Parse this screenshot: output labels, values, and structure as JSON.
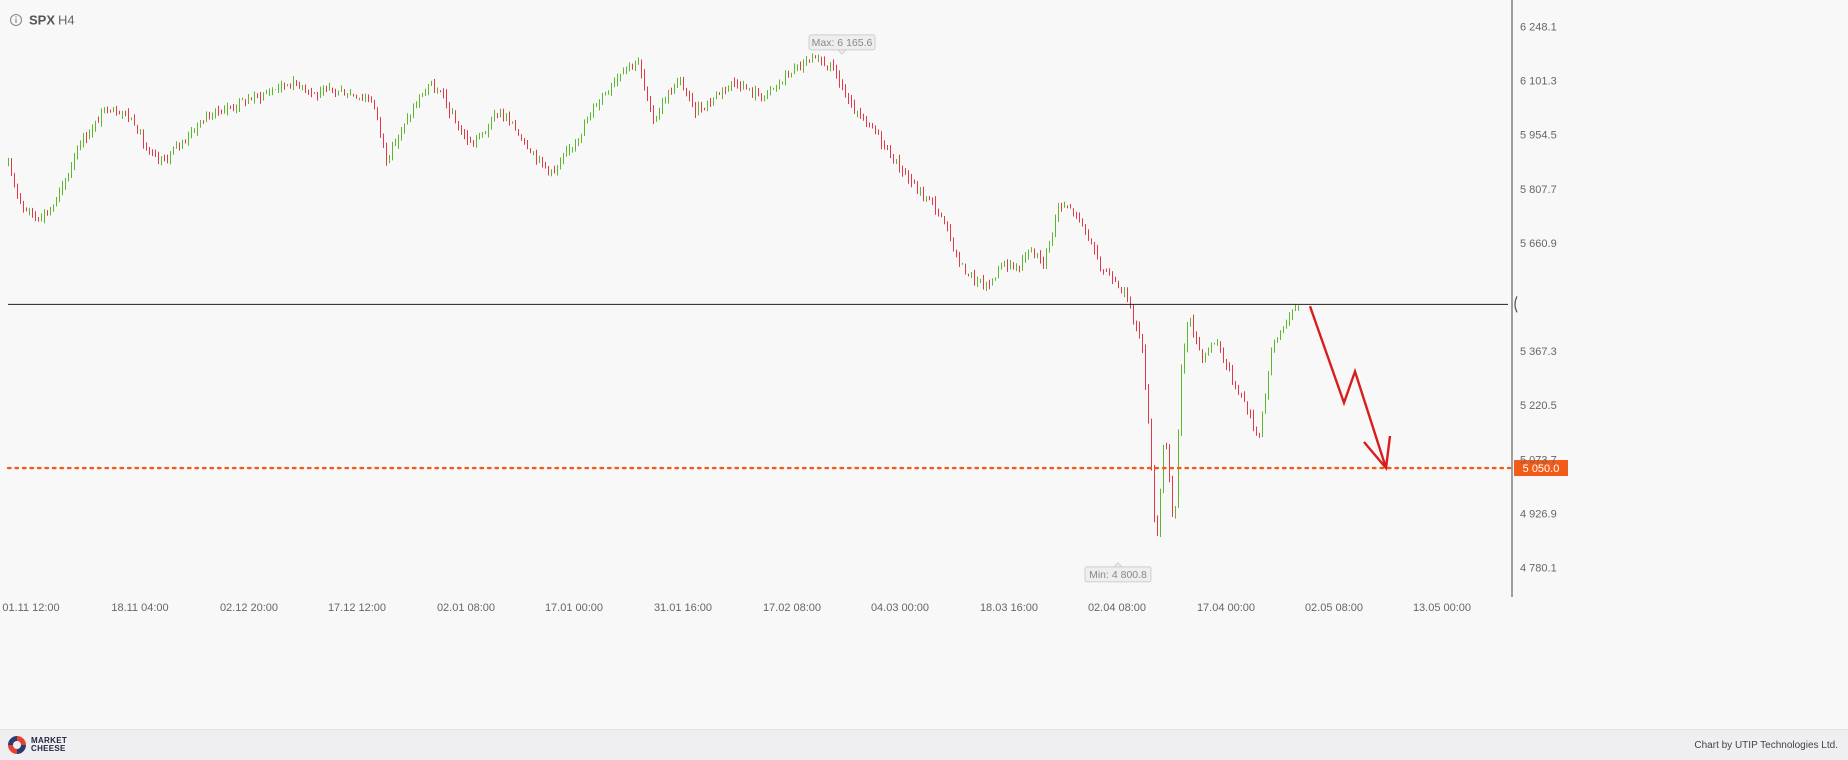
{
  "symbol": "SPX",
  "timeframe": "H4",
  "info_icon": "info-circle-icon",
  "footer": {
    "logo_line1": "MARKET",
    "logo_line2": "CHEESE",
    "credit": "Chart by UTIP Technologies Ltd."
  },
  "colors": {
    "up": "#5cb82e",
    "down": "#e0394a",
    "target": "#f25c19",
    "arrow": "#d71d1d",
    "level": "#222222",
    "background": "#f8f8f8"
  },
  "chart_data": {
    "type": "candlestick",
    "y_axis_side": "right",
    "ylim": [
      4700,
      6320
    ],
    "y_ticks": [
      "6 248.1",
      "6 101.3",
      "5 954.5",
      "5 807.7",
      "5 660.9",
      "5 367.3",
      "5 220.5",
      "5 073.7",
      "4 926.9",
      "4 780.1"
    ],
    "x_ticks": [
      "01.11 12:00",
      "18.11 04:00",
      "02.12 20:00",
      "17.12 12:00",
      "02.01 08:00",
      "17.01 00:00",
      "31.01 16:00",
      "17.02 08:00",
      "04.03 00:00",
      "18.03 16:00",
      "02.04 08:00",
      "17.04 00:00",
      "02.05 08:00",
      "13.05 00:00"
    ],
    "max_label": "Max: 6 165.6",
    "min_label": "Min: 4 800.8",
    "max_value": 6165.6,
    "min_value": 4800.8,
    "horizontal_level": 5494,
    "target_level": 5050.0,
    "target_label": "5 050.0",
    "price_path": [
      [
        0,
        5870
      ],
      [
        14,
        5760
      ],
      [
        28,
        5730
      ],
      [
        42,
        5750
      ],
      [
        56,
        5820
      ],
      [
        70,
        5930
      ],
      [
        84,
        5970
      ],
      [
        98,
        6030
      ],
      [
        112,
        6020
      ],
      [
        126,
        5990
      ],
      [
        140,
        5900
      ],
      [
        154,
        5880
      ],
      [
        168,
        5920
      ],
      [
        182,
        5960
      ],
      [
        196,
        6000
      ],
      [
        210,
        6020
      ],
      [
        224,
        6030
      ],
      [
        238,
        6050
      ],
      [
        252,
        6060
      ],
      [
        266,
        6080
      ],
      [
        280,
        6095
      ],
      [
        294,
        6090
      ],
      [
        308,
        6060
      ],
      [
        322,
        6075
      ],
      [
        336,
        6070
      ],
      [
        350,
        6060
      ],
      [
        364,
        6050
      ],
      [
        378,
        5890
      ],
      [
        392,
        5960
      ],
      [
        406,
        6030
      ],
      [
        420,
        6090
      ],
      [
        434,
        6060
      ],
      [
        448,
        5980
      ],
      [
        462,
        5930
      ],
      [
        476,
        5960
      ],
      [
        490,
        6020
      ],
      [
        504,
        5980
      ],
      [
        518,
        5930
      ],
      [
        532,
        5880
      ],
      [
        546,
        5850
      ],
      [
        560,
        5910
      ],
      [
        574,
        5970
      ],
      [
        588,
        6040
      ],
      [
        602,
        6090
      ],
      [
        616,
        6140
      ],
      [
        630,
        6150
      ],
      [
        644,
        5990
      ],
      [
        658,
        6060
      ],
      [
        672,
        6100
      ],
      [
        686,
        6020
      ],
      [
        700,
        6040
      ],
      [
        714,
        6080
      ],
      [
        728,
        6100
      ],
      [
        742,
        6070
      ],
      [
        756,
        6060
      ],
      [
        770,
        6090
      ],
      [
        784,
        6130
      ],
      [
        798,
        6150
      ],
      [
        812,
        6155
      ],
      [
        826,
        6130
      ],
      [
        840,
        6040
      ],
      [
        854,
        5990
      ],
      [
        868,
        5960
      ],
      [
        882,
        5900
      ],
      [
        896,
        5850
      ],
      [
        910,
        5800
      ],
      [
        924,
        5770
      ],
      [
        938,
        5700
      ],
      [
        952,
        5600
      ],
      [
        966,
        5560
      ],
      [
        980,
        5540
      ],
      [
        994,
        5610
      ],
      [
        1008,
        5590
      ],
      [
        1022,
        5640
      ],
      [
        1036,
        5610
      ],
      [
        1050,
        5760
      ],
      [
        1064,
        5750
      ],
      [
        1078,
        5690
      ],
      [
        1092,
        5590
      ],
      [
        1106,
        5570
      ],
      [
        1120,
        5500
      ],
      [
        1134,
        5380
      ],
      [
        1142,
        5100
      ],
      [
        1148,
        4830
      ],
      [
        1156,
        5160
      ],
      [
        1166,
        4860
      ],
      [
        1172,
        5300
      ],
      [
        1180,
        5460
      ],
      [
        1194,
        5350
      ],
      [
        1208,
        5400
      ],
      [
        1222,
        5300
      ],
      [
        1236,
        5230
      ],
      [
        1250,
        5130
      ],
      [
        1264,
        5380
      ],
      [
        1278,
        5450
      ],
      [
        1292,
        5495
      ]
    ],
    "projection_arrow": [
      [
        1302,
        5489
      ],
      [
        1336,
        5227
      ],
      [
        1347,
        5312
      ],
      [
        1378,
        5050
      ]
    ]
  }
}
